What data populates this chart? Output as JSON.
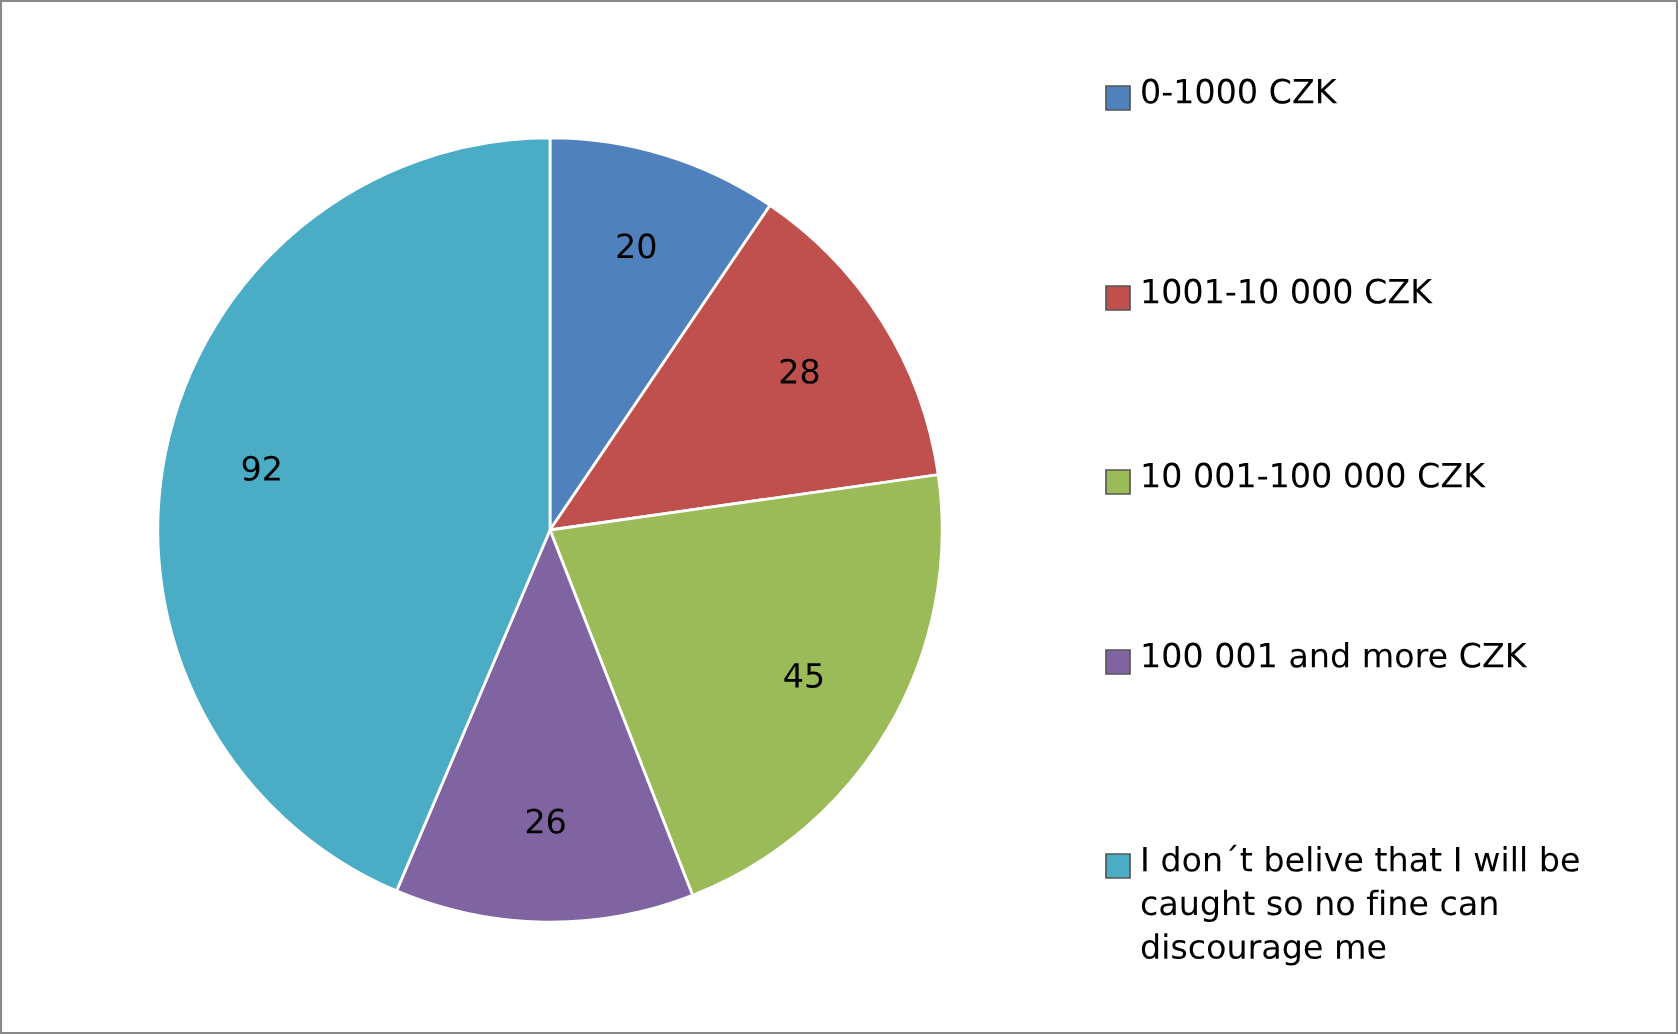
{
  "chart_data": {
    "type": "pie",
    "categories": [
      "0-1000 CZK",
      "1001-10 000 CZK",
      "10 001-100 000 CZK",
      "100 001 and more CZK",
      "I don´t belive that I will be caught so no fine can discourage me"
    ],
    "values": [
      20,
      28,
      45,
      26,
      92
    ],
    "colors": [
      "#4f81bd",
      "#c0504d",
      "#9bbb59",
      "#8064a2",
      "#4bacc6"
    ],
    "data_labels": true,
    "legend": "right"
  }
}
